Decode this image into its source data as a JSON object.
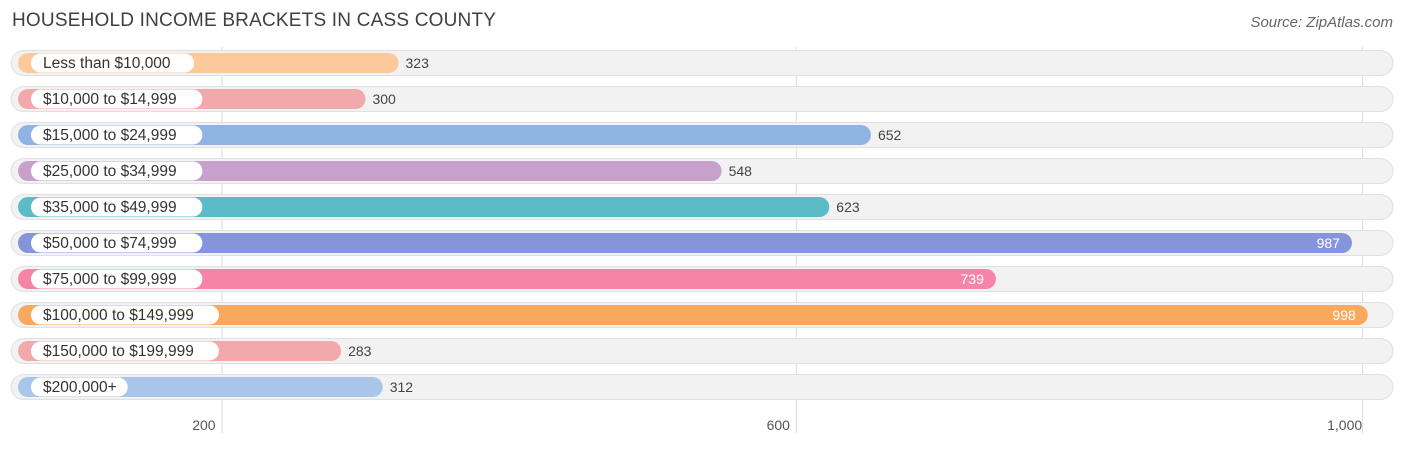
{
  "header": {
    "title": "HOUSEHOLD INCOME BRACKETS IN CASS COUNTY",
    "source": "Source: ZipAtlas.com"
  },
  "chart_data": {
    "type": "bar",
    "orientation": "horizontal",
    "title": "HOUSEHOLD INCOME BRACKETS IN CASS COUNTY",
    "xlabel": "",
    "ylabel": "",
    "categories": [
      "Less than $10,000",
      "$10,000 to $14,999",
      "$15,000 to $24,999",
      "$25,000 to $34,999",
      "$35,000 to $49,999",
      "$50,000 to $74,999",
      "$75,000 to $99,999",
      "$100,000 to $149,999",
      "$150,000 to $199,999",
      "$200,000+"
    ],
    "values": [
      323,
      300,
      652,
      548,
      623,
      987,
      739,
      998,
      283,
      312
    ],
    "value_labels": [
      "323",
      "300",
      "652",
      "548",
      "623",
      "987",
      "739",
      "998",
      "283",
      "312"
    ],
    "colors": [
      "#fbc99a",
      "#f2a9ab",
      "#8fb4e3",
      "#c7a1cc",
      "#5bbcc8",
      "#8595dc",
      "#f684a8",
      "#f9a95e",
      "#f2a9ab",
      "#a8c6ea"
    ],
    "xticks": [
      200,
      600,
      1000
    ],
    "xtick_labels": [
      "200",
      "600",
      "1,000"
    ],
    "xlim": [
      58,
      1010
    ],
    "grid": true
  }
}
